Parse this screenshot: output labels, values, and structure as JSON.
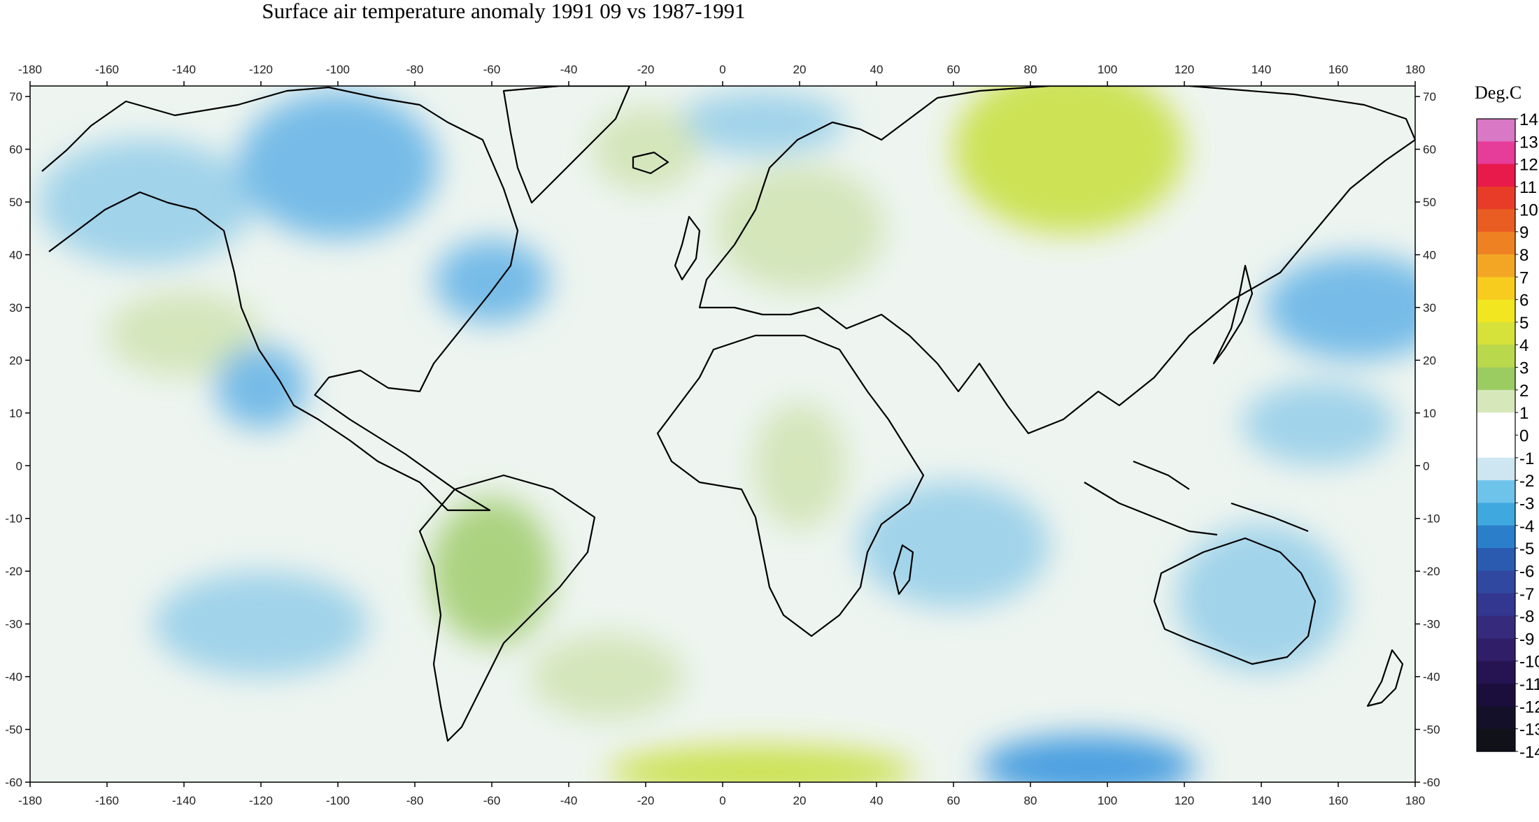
{
  "title": "Surface air temperature anomaly 1991 09 vs 1987-1991",
  "map": {
    "lon_ticks": [
      -180,
      -160,
      -140,
      -120,
      -100,
      -80,
      -60,
      -40,
      -20,
      0,
      20,
      40,
      60,
      80,
      100,
      120,
      140,
      160,
      180
    ],
    "lat_ticks": [
      70,
      60,
      50,
      40,
      30,
      20,
      10,
      0,
      -10,
      -20,
      -30,
      -40,
      -50,
      -60
    ],
    "lon_range": [
      -180,
      180
    ],
    "lat_range": [
      -60,
      72
    ],
    "anomaly_regions": [
      {
        "lon": -150,
        "lat": 50,
        "rx": 28,
        "ry": 12,
        "value": -1.5
      },
      {
        "lon": -100,
        "lat": 57,
        "rx": 26,
        "ry": 14,
        "value": -2.2
      },
      {
        "lon": -60,
        "lat": 35,
        "rx": 15,
        "ry": 8,
        "value": -1.8
      },
      {
        "lon": 10,
        "lat": 65,
        "rx": 22,
        "ry": 6,
        "value": -1.6
      },
      {
        "lon": 90,
        "lat": 60,
        "rx": 30,
        "ry": 16,
        "value": 2.5
      },
      {
        "lon": 20,
        "lat": 45,
        "rx": 22,
        "ry": 12,
        "value": 1.3
      },
      {
        "lon": -140,
        "lat": 25,
        "rx": 20,
        "ry": 8,
        "value": 1.2
      },
      {
        "lon": -120,
        "lat": 15,
        "rx": 12,
        "ry": 8,
        "value": -2.0
      },
      {
        "lon": 165,
        "lat": 30,
        "rx": 24,
        "ry": 10,
        "value": -2.4
      },
      {
        "lon": 155,
        "lat": 8,
        "rx": 20,
        "ry": 8,
        "value": -1.4
      },
      {
        "lon": -60,
        "lat": -20,
        "rx": 16,
        "ry": 14,
        "value": 2.0
      },
      {
        "lon": 20,
        "lat": 0,
        "rx": 12,
        "ry": 12,
        "value": 0.9
      },
      {
        "lon": 140,
        "lat": -25,
        "rx": 22,
        "ry": 14,
        "value": -1.3
      },
      {
        "lon": -120,
        "lat": -30,
        "rx": 28,
        "ry": 10,
        "value": -1.4
      },
      {
        "lon": 60,
        "lat": -15,
        "rx": 25,
        "ry": 12,
        "value": -1.2
      },
      {
        "lon": 10,
        "lat": -58,
        "rx": 40,
        "ry": 5,
        "value": 3.0
      },
      {
        "lon": 95,
        "lat": -57,
        "rx": 28,
        "ry": 6,
        "value": -2.8
      },
      {
        "lon": -30,
        "lat": -40,
        "rx": 20,
        "ry": 8,
        "value": 0.8
      },
      {
        "lon": -20,
        "lat": 60,
        "rx": 14,
        "ry": 8,
        "value": 0.9
      }
    ]
  },
  "colorbar": {
    "unit": "Deg.C",
    "labels": [
      "14",
      "13",
      "12",
      "11",
      "10",
      "9",
      "8",
      "7",
      "6",
      "5",
      "4",
      "3",
      "2",
      "1",
      "0",
      "-1",
      "-2",
      "-3",
      "-4",
      "-5",
      "-6",
      "-7",
      "-8",
      "-9",
      "-10",
      "-11",
      "-12",
      "-13",
      "-14"
    ],
    "colors": [
      "#d978c4",
      "#e63c9a",
      "#e8194b",
      "#e83c28",
      "#ea5d22",
      "#ee8223",
      "#f3a624",
      "#f8cb1f",
      "#f2e620",
      "#d6e23a",
      "#b9d84c",
      "#9bcc62",
      "#d6e8ba",
      "#ffffff",
      "#ffffff",
      "#cde6f2",
      "#6ec3ea",
      "#3ea8df",
      "#2b7fca",
      "#2a5bb0",
      "#3148a0",
      "#34378f",
      "#362a7d",
      "#311e69",
      "#251451",
      "#1b0e3c",
      "#15102a",
      "#11111a"
    ]
  }
}
